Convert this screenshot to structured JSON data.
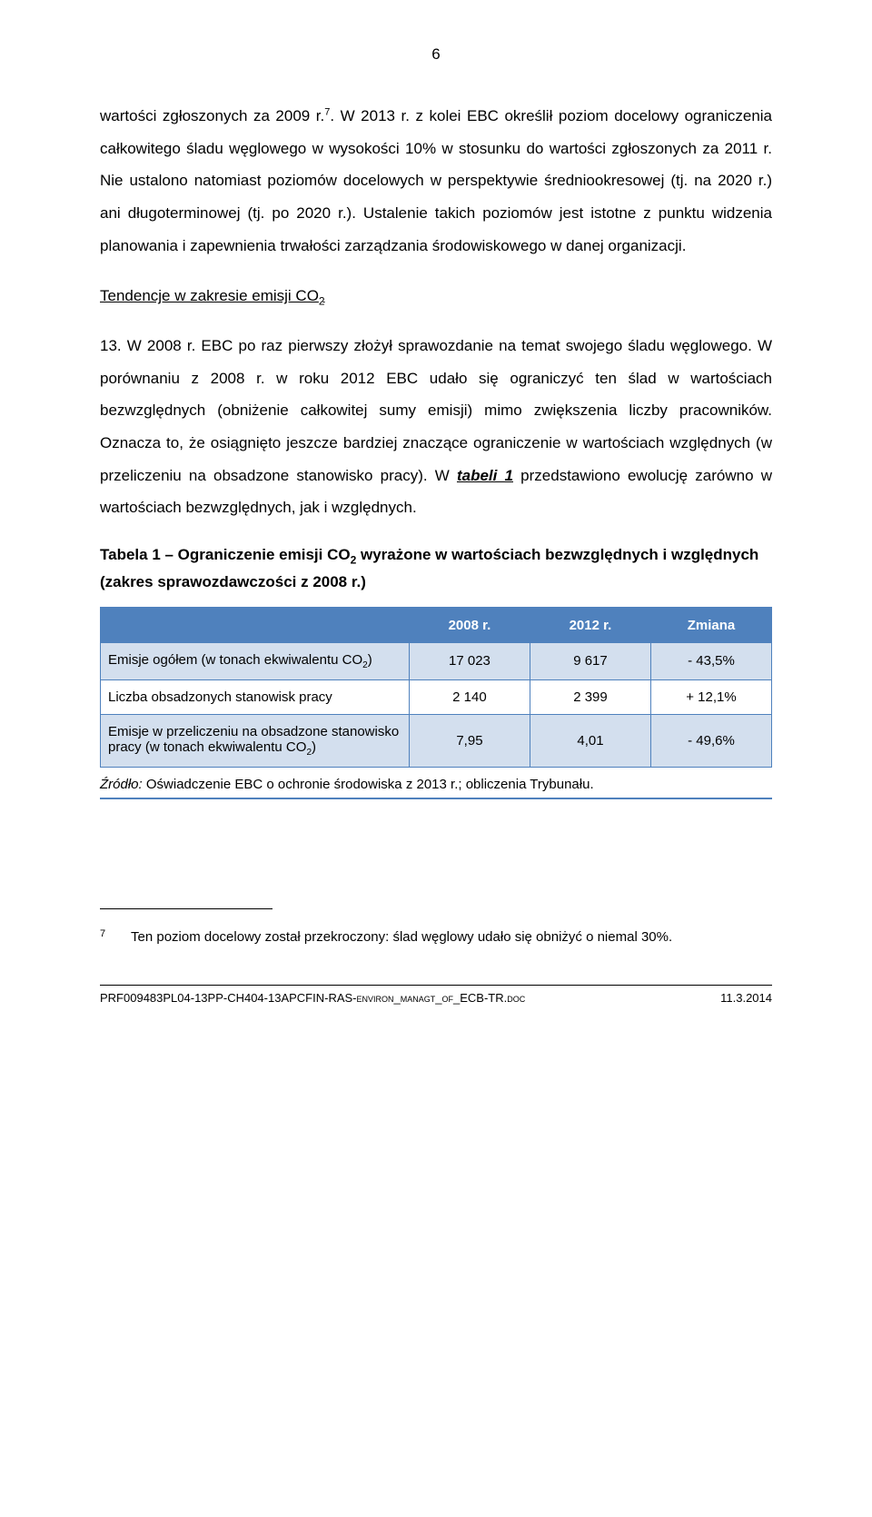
{
  "page_number": "6",
  "colors": {
    "text": "#000000",
    "table_border": "#4f81bd",
    "table_header_bg": "#4f81bd",
    "table_header_text": "#ffffff",
    "row_alt_bg": "#d3dfee",
    "row_bg": "#ffffff",
    "background": "#ffffff"
  },
  "paragraphs": {
    "p1_a": "wartości zgłoszonych za 2009 r.",
    "p1_sup": "7",
    "p1_b": ". W 2013 r. z kolei EBC określił poziom docelowy ograniczenia całkowitego śladu węglowego w wysokości 10% w stosunku do wartości zgłoszonych za 2011 r. Nie ustalono natomiast poziomów docelowych w perspektywie średniookresowej (tj. na 2020 r.) ani długoterminowej (tj. po 2020 r.). Ustalenie takich poziomów jest istotne z punktu widzenia planowania i zapewnienia trwałości zarządzania środowiskowego w danej organizacji."
  },
  "section_head": {
    "a": "Tendencje w zakresie emisji CO",
    "sub": "2"
  },
  "paragraphs2": {
    "p2_a": "13. W 2008 r. EBC po raz pierwszy złożył sprawozdanie na temat swojego śladu węglowego. W porównaniu z 2008 r. w roku 2012 EBC udało się ograniczyć ten ślad w wartościach bezwzględnych (obniżenie całkowitej sumy emisji) mimo zwiększenia liczby pracowników. Oznacza to, że osiągnięto jeszcze bardziej znaczące ograniczenie w wartościach względnych (w przeliczeniu na obsadzone stanowisko pracy). W ",
    "p2_bold": "tabeli 1",
    "p2_b": " przedstawiono ewolucję zarówno w wartościach bezwzględnych, jak i względnych."
  },
  "table_title": {
    "a": "Tabela 1 – Ograniczenie emisji CO",
    "sub": "2",
    "b": " wyrażone w wartościach bezwzględnych i względnych (zakres sprawozdawczości z 2008 r.)"
  },
  "table": {
    "headers": [
      "",
      "2008 r.",
      "2012 r.",
      "Zmiana"
    ],
    "rows": [
      {
        "label_a": "Emisje ogółem (w tonach ekwiwalentu CO",
        "label_sub": "2",
        "label_b": ")",
        "c1": "17 023",
        "c2": "9 617",
        "c3": "- 43,5%"
      },
      {
        "label_a": "Liczba obsadzonych stanowisk pracy",
        "label_sub": "",
        "label_b": "",
        "c1": "2 140",
        "c2": "2 399",
        "c3": "+ 12,1%"
      },
      {
        "label_a": "Emisje w przeliczeniu na obsadzone stanowisko pracy (w tonach ekwiwalentu CO",
        "label_sub": "2",
        "label_b": ")",
        "c1": "7,95",
        "c2": "4,01",
        "c3": "- 49,6%"
      }
    ],
    "source_label": "Źródło:",
    "source_text": " Oświadczenie EBC o ochronie środowiska z 2013 r.; obliczenia Trybunału.",
    "col_widths": [
      "46%",
      "18%",
      "18%",
      "18%"
    ]
  },
  "footnote": {
    "num": "7",
    "text": "Ten poziom docelowy został przekroczony: ślad węglowy udało się obniżyć o niemal 30%."
  },
  "footer": {
    "left_a": "PRF009483PL04-13PP-CH404-13APCFIN-RAS-",
    "left_sc": "environ_managt_of_",
    "left_b": "ECB-TR.",
    "left_sc2": "doc",
    "right": "11.3.2014"
  }
}
